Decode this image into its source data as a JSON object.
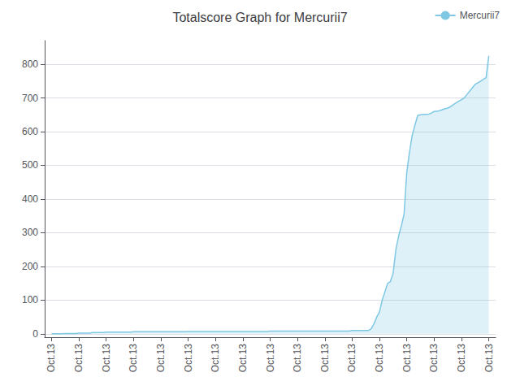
{
  "chart_data": {
    "type": "area",
    "title": "Totalscore Graph for Mercurii7",
    "x": [
      0,
      2,
      4,
      6,
      8,
      10,
      12,
      14,
      16,
      18,
      20,
      22,
      24,
      26,
      28,
      30,
      32,
      34,
      36,
      38,
      40,
      42,
      44,
      46,
      48,
      50,
      52,
      54,
      56,
      58,
      60,
      62,
      64,
      66,
      68,
      70,
      72,
      74,
      76,
      78,
      80,
      82,
      84,
      86,
      88,
      90,
      92,
      94,
      96,
      98,
      100,
      102,
      104,
      106,
      108,
      110,
      112,
      114,
      116,
      118,
      120,
      122,
      124,
      126,
      128,
      130,
      132,
      134,
      136,
      138,
      140,
      142,
      144,
      146,
      148,
      150,
      152,
      154,
      156,
      158,
      160,
      162,
      164,
      166,
      168,
      170,
      172,
      174,
      176,
      178,
      180,
      182,
      184,
      186,
      188,
      190,
      192,
      194,
      196,
      198,
      200,
      202,
      204,
      206,
      208,
      210,
      212,
      214,
      216,
      218,
      220,
      222,
      224,
      226,
      228,
      230,
      232,
      234,
      236,
      238,
      240,
      242,
      244,
      246,
      248,
      250,
      252,
      254,
      256,
      258,
      260,
      262,
      264,
      266,
      268,
      270,
      272,
      274,
      276,
      278,
      280,
      282,
      284,
      286,
      288,
      290,
      292,
      294,
      296,
      298,
      300,
      302,
      304,
      306,
      308,
      310,
      312,
      314,
      316,
      318,
      320
    ],
    "series": [
      {
        "name": "Mercurii7",
        "color": "#7ec8e3",
        "values": [
          0,
          0,
          0,
          0,
          0,
          1,
          1,
          1,
          1,
          1,
          2,
          2,
          2,
          2,
          2,
          4,
          4,
          4,
          4,
          4,
          5,
          5,
          5,
          5,
          5,
          5,
          5,
          5,
          5,
          5,
          6,
          6,
          6,
          6,
          6,
          6,
          6,
          6,
          6,
          6,
          6,
          6,
          6,
          6,
          6,
          6,
          6,
          6,
          6,
          6,
          7,
          7,
          7,
          7,
          7,
          7,
          7,
          7,
          7,
          7,
          7,
          7,
          7,
          7,
          7,
          7,
          7,
          7,
          7,
          7,
          7,
          7,
          7,
          7,
          7,
          7,
          7,
          7,
          7,
          7,
          8,
          8,
          8,
          8,
          8,
          8,
          8,
          8,
          8,
          8,
          8,
          8,
          8,
          8,
          8,
          8,
          8,
          8,
          8,
          8,
          8,
          8,
          8,
          8,
          8,
          8,
          8,
          8,
          8,
          8,
          10,
          10,
          10,
          10,
          10,
          10,
          10,
          15,
          30,
          50,
          65,
          100,
          125,
          150,
          155,
          180,
          250,
          290,
          320,
          355,
          480,
          540,
          590,
          620,
          648,
          650,
          651,
          651,
          652,
          655,
          660,
          660,
          662,
          665,
          668,
          670,
          674,
          680,
          685,
          690,
          695,
          700,
          710,
          720,
          730,
          740,
          745,
          750,
          755,
          760,
          825
        ]
      }
    ],
    "xlim": [
      -5,
      325
    ],
    "xticks": [
      {
        "value": 0,
        "label": "Oct.13"
      },
      {
        "value": 20,
        "label": "Oct.13"
      },
      {
        "value": 40,
        "label": "Oct.13"
      },
      {
        "value": 60,
        "label": "Oct.13"
      },
      {
        "value": 80,
        "label": "Oct.13"
      },
      {
        "value": 100,
        "label": "Oct.13"
      },
      {
        "value": 120,
        "label": "Oct.13"
      },
      {
        "value": 140,
        "label": "Oct.13"
      },
      {
        "value": 160,
        "label": "Oct.13"
      },
      {
        "value": 180,
        "label": "Oct.13"
      },
      {
        "value": 200,
        "label": "Oct.13"
      },
      {
        "value": 220,
        "label": "Oct.13"
      },
      {
        "value": 240,
        "label": "Oct.13"
      },
      {
        "value": 260,
        "label": "Oct.13"
      },
      {
        "value": 280,
        "label": "Oct.13"
      },
      {
        "value": 300,
        "label": "Oct.13"
      },
      {
        "value": 320,
        "label": "Oct.13"
      }
    ],
    "ylim": [
      -10,
      870
    ],
    "yticks": [
      0,
      100,
      200,
      300,
      400,
      500,
      600,
      700,
      800
    ],
    "grid": true,
    "legend": "upper right"
  }
}
